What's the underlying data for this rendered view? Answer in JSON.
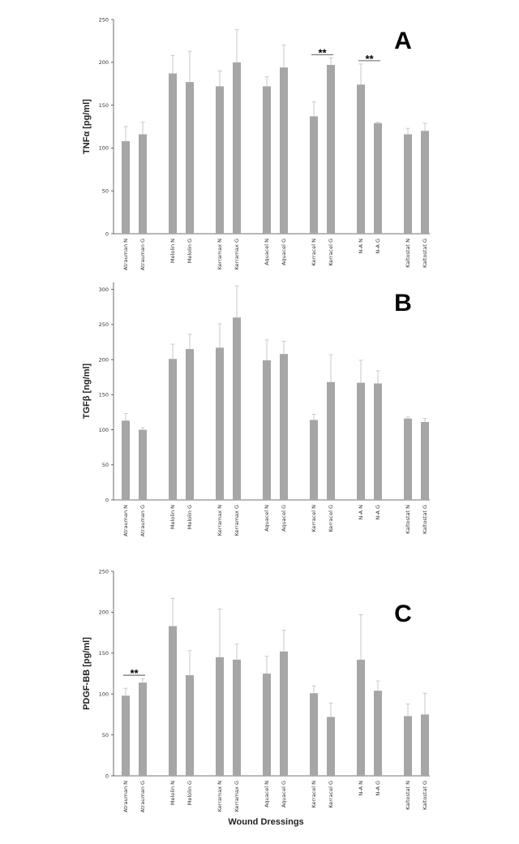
{
  "figure": {
    "xlabel": "Wound Dressings"
  },
  "chart_data": [
    {
      "type": "bar",
      "panel_label": "A",
      "ylabel": "TNFα [pg/ml]",
      "ylim": [
        0,
        250
      ],
      "yticks": [
        0,
        50,
        100,
        150,
        200,
        250
      ],
      "categories": [
        "Atrauman N",
        "Atrauman G",
        "Melolin N",
        "Melolin G",
        "Kerramax N",
        "Kerramax G",
        "Aquacel N",
        "Aquacel G",
        "Kerracel N",
        "Kerracel G",
        "N-A N",
        "N-A G",
        "Kaltostat N",
        "Kaltostat G"
      ],
      "values": [
        108,
        116,
        187,
        177,
        172,
        200,
        172,
        194,
        137,
        197,
        174,
        129,
        116,
        120
      ],
      "errors": [
        17,
        14,
        21,
        36,
        18,
        38,
        11,
        26,
        17,
        8,
        24,
        1,
        7,
        9
      ],
      "significance": [
        {
          "pair": [
            8,
            9
          ],
          "label": "**"
        },
        {
          "pair": [
            10,
            11
          ],
          "label": "**"
        }
      ],
      "bar_color": "#a6a6a6",
      "error_color": "#bdbdbd"
    },
    {
      "type": "bar",
      "panel_label": "B",
      "ylabel": "TGFβ [ng/ml]",
      "ylim": [
        0,
        310
      ],
      "yticks": [
        0,
        50,
        100,
        150,
        200,
        250,
        300
      ],
      "categories": [
        "Atrauman N",
        "Atrauman G",
        "Melolin N",
        "Melolin G",
        "Kerramax N",
        "Kerramax G",
        "Aquacel N",
        "Aquacel G",
        "Kerracel N",
        "Kerracel G",
        "N-A N",
        "N-A G",
        "Kaltostat N",
        "Kaltostat G"
      ],
      "values": [
        113,
        100,
        201,
        215,
        217,
        260,
        199,
        208,
        114,
        168,
        167,
        166,
        116,
        111
      ],
      "errors": [
        10,
        3,
        21,
        21,
        34,
        45,
        29,
        18,
        8,
        39,
        32,
        18,
        2,
        5
      ],
      "significance": [],
      "bar_color": "#a6a6a6",
      "error_color": "#bdbdbd"
    },
    {
      "type": "bar",
      "panel_label": "C",
      "ylabel": "PDGF-BB [pg/ml]",
      "ylim": [
        0,
        250
      ],
      "yticks": [
        0,
        50,
        100,
        150,
        200,
        250
      ],
      "categories": [
        "Atrauman N",
        "Atrauman G",
        "Melolin N",
        "Melolin G",
        "Kerramax N",
        "Kerramax G",
        "Aquacel N",
        "Aquacel G",
        "Kerracel N",
        "Kerracel G",
        "N-A N",
        "N-A G",
        "Kaltostat N",
        "Kaltostat G"
      ],
      "values": [
        98,
        114,
        183,
        123,
        145,
        142,
        125,
        152,
        101,
        72,
        142,
        104,
        73,
        75
      ],
      "errors": [
        9,
        5,
        34,
        30,
        59,
        19,
        21,
        26,
        9,
        17,
        55,
        12,
        15,
        26
      ],
      "significance": [
        {
          "pair": [
            0,
            1
          ],
          "label": "**"
        }
      ],
      "bar_color": "#a6a6a6",
      "error_color": "#bdbdbd"
    }
  ]
}
